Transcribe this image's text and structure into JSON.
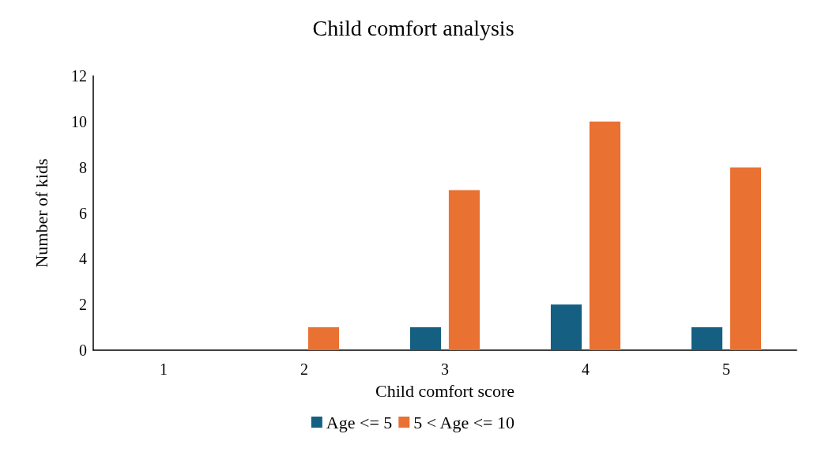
{
  "chart_data": {
    "type": "bar",
    "title": "Child comfort analysis",
    "xlabel": "Child comfort score",
    "ylabel": "Number of kids",
    "categories": [
      "1",
      "2",
      "3",
      "4",
      "5"
    ],
    "series": [
      {
        "name": "Age <= 5",
        "color": "#156082",
        "values": [
          0,
          0,
          1,
          2,
          1
        ]
      },
      {
        "name": "5 < Age <= 10",
        "color": "#e97132",
        "values": [
          0,
          1,
          7,
          10,
          8
        ]
      }
    ],
    "ylim": [
      0,
      12
    ],
    "yticks": [
      0,
      2,
      4,
      6,
      8,
      10,
      12
    ],
    "grid": false,
    "legend": "bottom"
  }
}
